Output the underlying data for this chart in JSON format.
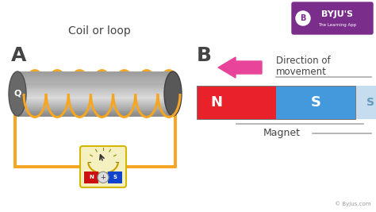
{
  "bg_color": "#ffffff",
  "label_A": "A",
  "label_B": "B",
  "coil_label": "Coil or loop",
  "coil_q_label": "Q",
  "direction_label": "Direction of\nmovement",
  "magnet_label": "Magnet",
  "magnet_N_label": "N",
  "magnet_S_label": "S",
  "magnet_S2_label": "S",
  "magnet_N_color": "#e8212a",
  "magnet_S_color": "#4499dd",
  "magnet_S2_color": "#c5ddef",
  "coil_loop_color": "#f5a623",
  "wire_color": "#f5a623",
  "arrow_color": "#e8449a",
  "text_color": "#444444",
  "byju_logo_color": "#7b2d8b",
  "line_color": "#aaaaaa"
}
